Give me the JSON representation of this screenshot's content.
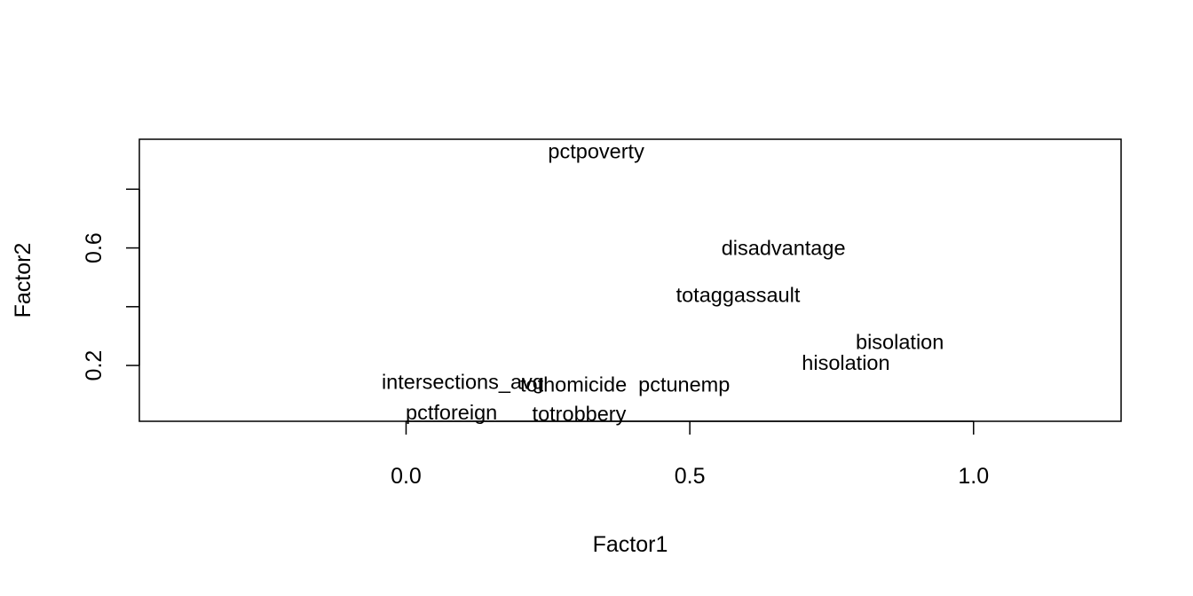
{
  "chart_data": {
    "type": "scatter",
    "title": "",
    "xlabel": "Factor1",
    "ylabel": "Factor2",
    "xlim": [
      -0.47,
      1.26
    ],
    "ylim": [
      0.01,
      0.97
    ],
    "x_ticks": [
      {
        "value": 0.0,
        "label": "0.0"
      },
      {
        "value": 0.5,
        "label": "0.5"
      },
      {
        "value": 1.0,
        "label": "1.0"
      }
    ],
    "y_ticks": [
      {
        "value": 0.2,
        "label": "0.2"
      },
      {
        "value": 0.4,
        "label": ""
      },
      {
        "value": 0.6,
        "label": "0.6"
      },
      {
        "value": 0.8,
        "label": ""
      }
    ],
    "grid": false,
    "points": [
      {
        "label": "pctpoverty",
        "x": 0.335,
        "y": 0.93
      },
      {
        "label": "disadvantage",
        "x": 0.665,
        "y": 0.6
      },
      {
        "label": "totaggassault",
        "x": 0.585,
        "y": 0.44
      },
      {
        "label": "bisolation",
        "x": 0.87,
        "y": 0.28
      },
      {
        "label": "hisolation",
        "x": 0.775,
        "y": 0.21
      },
      {
        "label": "intersections_avg",
        "x": 0.1,
        "y": 0.145
      },
      {
        "label": "tothomicide",
        "x": 0.295,
        "y": 0.135
      },
      {
        "label": "pctunemp",
        "x": 0.49,
        "y": 0.135
      },
      {
        "label": "pctforeign",
        "x": 0.08,
        "y": 0.04
      },
      {
        "label": "totrobbery",
        "x": 0.305,
        "y": 0.035
      }
    ]
  }
}
